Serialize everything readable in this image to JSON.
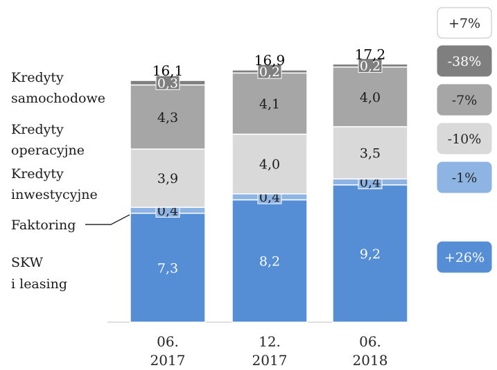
{
  "chart_data": {
    "type": "bar",
    "stacked": true,
    "categories": [
      [
        "06.",
        "2017"
      ],
      [
        "12.",
        "2017"
      ],
      [
        "06.",
        "2018"
      ]
    ],
    "series": [
      {
        "name": "SKW i leasing",
        "label_lines": [
          "SKW",
          "i leasing"
        ],
        "values": [
          7.3,
          8.2,
          9.2
        ],
        "labels": [
          "7,3",
          "8,2",
          "9,2"
        ],
        "color": "#558ed5",
        "label_color": "#ffffff",
        "change": "+26%"
      },
      {
        "name": "Faktoring",
        "label_lines": [
          "Faktoring"
        ],
        "values": [
          0.4,
          0.4,
          0.4
        ],
        "labels": [
          "0,4",
          "0,4",
          "0,4"
        ],
        "color": "#8db4e2",
        "label_color": "#1a1a1a",
        "change": "-1%"
      },
      {
        "name": "Kredyty inwestycyjne",
        "label_lines": [
          "Kredyty",
          "inwestycyjne"
        ],
        "values": [
          3.9,
          4.0,
          3.5
        ],
        "labels": [
          "3,9",
          "4,0",
          "3,5"
        ],
        "color": "#d9d9d9",
        "label_color": "#1a1a1a",
        "change": "-10%"
      },
      {
        "name": "Kredyty operacyjne",
        "label_lines": [
          "Kredyty",
          "operacyjne"
        ],
        "values": [
          4.3,
          4.1,
          4.0
        ],
        "labels": [
          "4,3",
          "4,1",
          "4,0"
        ],
        "color": "#a6a6a6",
        "label_color": "#1a1a1a",
        "change": "-7%"
      },
      {
        "name": "Kredyty samochodowe",
        "label_lines": [
          "Kredyty",
          "samochodowe"
        ],
        "values": [
          0.3,
          0.2,
          0.2
        ],
        "labels": [
          "0,3",
          "0,2",
          "0,2"
        ],
        "color": "#7f7f7f",
        "label_color": "#ffffff",
        "change": "-38%"
      }
    ],
    "totals": [
      16.1,
      16.9,
      17.2
    ],
    "total_labels": [
      "16,1",
      "16,9",
      "17,2"
    ],
    "total_change": "+7%",
    "ylim": [
      0,
      18.2
    ],
    "grid": false,
    "legend": "left"
  }
}
